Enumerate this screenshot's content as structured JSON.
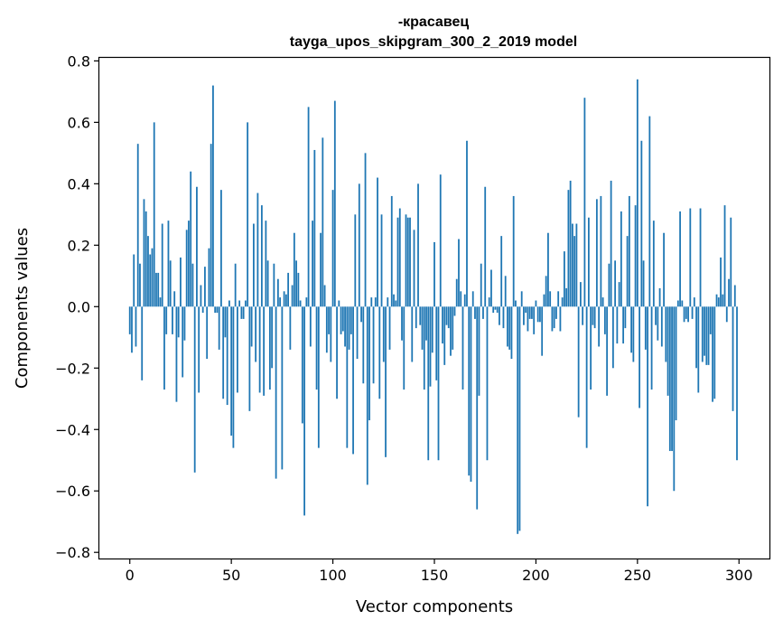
{
  "chart_data": {
    "type": "bar",
    "title": "-красавец",
    "subtitle": "tayga_upos_skipgram_300_2_2019 model",
    "xlabel": "Vector components",
    "ylabel": "Components values",
    "xlim": [
      -15,
      315
    ],
    "ylim": [
      -0.82,
      0.81
    ],
    "xticks": [
      0,
      50,
      100,
      150,
      200,
      250,
      300
    ],
    "xtick_labels": [
      "0",
      "50",
      "100",
      "150",
      "200",
      "250",
      "300"
    ],
    "yticks": [
      -0.8,
      -0.6,
      -0.4,
      -0.2,
      0.0,
      0.2,
      0.4,
      0.6,
      0.8
    ],
    "ytick_labels": [
      "−0.8",
      "−0.6",
      "−0.4",
      "−0.2",
      "0.0",
      "0.2",
      "0.4",
      "0.6",
      "0.8"
    ],
    "grid": false,
    "bar_color": "#1f77b4",
    "values": [
      -0.09,
      -0.15,
      0.17,
      -0.13,
      0.53,
      0.14,
      -0.24,
      0.35,
      0.31,
      0.23,
      0.17,
      0.19,
      0.6,
      0.11,
      0.11,
      0.03,
      0.27,
      -0.27,
      -0.09,
      0.28,
      0.15,
      -0.09,
      0.05,
      -0.31,
      -0.1,
      0.16,
      -0.23,
      -0.11,
      0.25,
      0.28,
      0.44,
      0.14,
      -0.54,
      0.39,
      -0.28,
      0.07,
      -0.02,
      0.13,
      -0.17,
      0.19,
      0.53,
      0.72,
      -0.02,
      -0.02,
      -0.14,
      0.38,
      -0.3,
      -0.1,
      -0.32,
      0.02,
      -0.42,
      -0.46,
      0.14,
      -0.28,
      0.02,
      -0.04,
      -0.04,
      0.02,
      0.6,
      -0.34,
      -0.13,
      0.27,
      -0.18,
      0.37,
      -0.28,
      0.33,
      -0.29,
      0.28,
      0.15,
      -0.27,
      -0.2,
      0.14,
      -0.56,
      0.09,
      0.03,
      -0.53,
      0.05,
      0.04,
      0.11,
      -0.14,
      0.07,
      0.24,
      0.15,
      0.11,
      0.02,
      -0.38,
      -0.68,
      0.03,
      0.65,
      -0.13,
      0.28,
      0.51,
      -0.27,
      -0.46,
      0.24,
      0.55,
      0.07,
      -0.15,
      -0.09,
      -0.18,
      0.38,
      0.67,
      -0.3,
      0.02,
      -0.09,
      -0.08,
      -0.13,
      -0.46,
      -0.14,
      -0.09,
      -0.48,
      0.3,
      -0.17,
      0.4,
      -0.05,
      -0.25,
      0.5,
      -0.58,
      -0.37,
      0.03,
      -0.25,
      0.03,
      0.42,
      -0.3,
      0.3,
      -0.18,
      -0.49,
      0.03,
      -0.14,
      0.36,
      0.04,
      0.02,
      0.29,
      0.32,
      -0.11,
      -0.27,
      0.3,
      0.29,
      0.29,
      -0.18,
      0.25,
      -0.07,
      0.4,
      -0.06,
      -0.14,
      -0.27,
      -0.11,
      -0.5,
      -0.26,
      -0.15,
      0.21,
      -0.24,
      -0.5,
      0.43,
      -0.12,
      -0.19,
      -0.06,
      -0.07,
      -0.16,
      -0.14,
      -0.03,
      0.09,
      0.22,
      0.05,
      -0.27,
      0.04,
      0.54,
      -0.55,
      -0.57,
      0.05,
      -0.04,
      -0.66,
      -0.29,
      0.14,
      -0.04,
      0.39,
      -0.5,
      0.03,
      0.12,
      -0.02,
      -0.01,
      -0.02,
      -0.06,
      0.23,
      -0.07,
      0.1,
      -0.13,
      -0.14,
      -0.17,
      0.36,
      0.02,
      -0.74,
      -0.73,
      0.05,
      -0.06,
      -0.02,
      -0.08,
      -0.04,
      -0.04,
      -0.09,
      0.02,
      -0.05,
      -0.05,
      -0.16,
      0.04,
      0.1,
      0.24,
      0.05,
      -0.08,
      -0.07,
      -0.04,
      0.05,
      -0.08,
      0.03,
      0.18,
      0.06,
      0.38,
      0.41,
      0.27,
      0.23,
      0.27,
      -0.36,
      0.08,
      -0.06,
      0.68,
      -0.46,
      0.29,
      -0.27,
      -0.06,
      -0.07,
      0.35,
      -0.13,
      0.36,
      0.03,
      -0.09,
      -0.29,
      0.14,
      0.41,
      -0.2,
      0.15,
      -0.12,
      0.08,
      0.31,
      -0.12,
      -0.07,
      0.23,
      0.36,
      -0.15,
      -0.18,
      0.33,
      0.74,
      -0.33,
      0.54,
      0.15,
      -0.14,
      -0.65,
      0.62,
      -0.27,
      0.28,
      -0.06,
      -0.11,
      0.06,
      -0.13,
      0.24,
      -0.18,
      -0.29,
      -0.47,
      -0.47,
      -0.6,
      -0.37,
      0.02,
      0.31,
      0.02,
      -0.05,
      -0.04,
      -0.05,
      0.32,
      -0.04,
      0.03,
      -0.2,
      -0.28,
      0.32,
      -0.18,
      -0.16,
      -0.19,
      -0.19,
      -0.09,
      -0.31,
      -0.3,
      0.04,
      0.03,
      0.16,
      0.04,
      0.33,
      -0.05,
      0.09,
      0.29,
      -0.34,
      0.07,
      -0.5
    ]
  }
}
